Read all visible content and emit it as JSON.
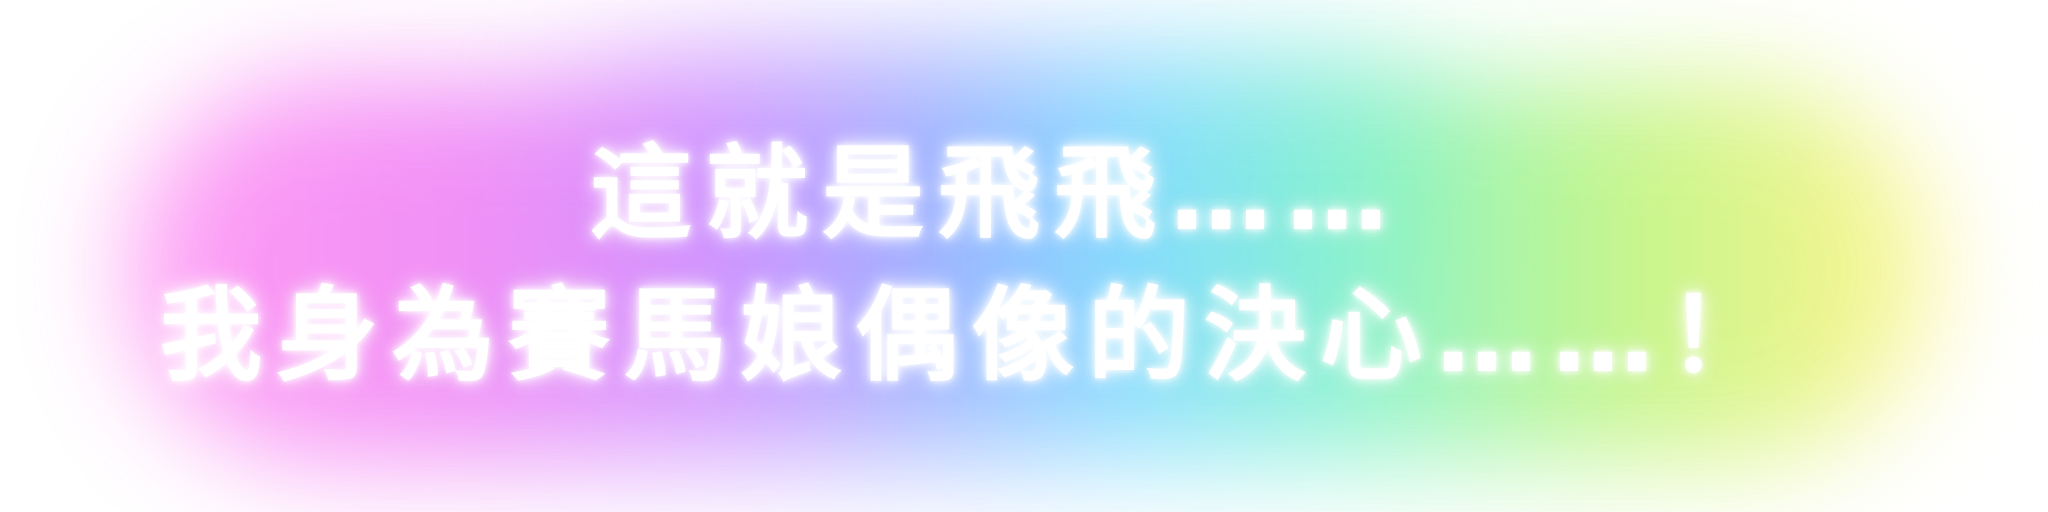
{
  "headline": {
    "line_1": "這就是飛飛……",
    "line_2": "我身為賽馬娘偶像的決心……！"
  },
  "colors": {
    "text": "#ffffff",
    "glow_pink": "#ff8ff2",
    "glow_purple": "#c98bff",
    "glow_blue": "#78dcff",
    "glow_green": "#7af2c9",
    "glow_yellow": "#fff27a"
  }
}
